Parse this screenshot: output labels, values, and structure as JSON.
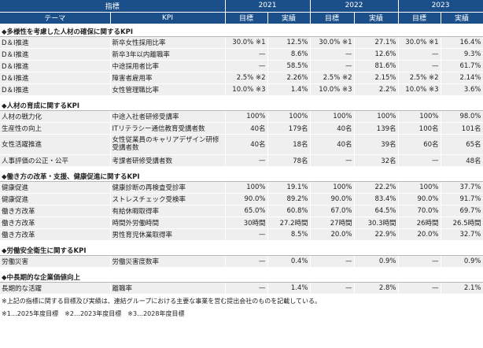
{
  "header": {
    "indicator": "指標",
    "theme": "テーマ",
    "kpi": "KPI",
    "years": [
      "2021",
      "2022",
      "2023"
    ],
    "target": "目標",
    "actual": "実績"
  },
  "sections": [
    {
      "title": "◆多様性を考慮した人材の確保に関するKPI",
      "rows": [
        {
          "theme": "D＆I推進",
          "kpi": "新卒女性採用比率",
          "v": [
            "30.0% ※1",
            "12.5%",
            "30.0% ※1",
            "27.1%",
            "30.0% ※1",
            "16.4%"
          ]
        },
        {
          "theme": "D＆I推進",
          "kpi": "新卒3年以内離職率",
          "v": [
            "—",
            "8.6%",
            "—",
            "12.6%",
            "—",
            "9.3%"
          ]
        },
        {
          "theme": "D＆I推進",
          "kpi": "中途採用者比率",
          "v": [
            "—",
            "58.5%",
            "—",
            "81.6%",
            "—",
            "61.7%"
          ]
        },
        {
          "theme": "D＆I推進",
          "kpi": "障害者雇用率",
          "v": [
            "2.5% ※2",
            "2.26%",
            "2.5% ※2",
            "2.15%",
            "2.5% ※2",
            "2.14%"
          ]
        },
        {
          "theme": "D＆I推進",
          "kpi": "女性管理職比率",
          "v": [
            "10.0% ※3",
            "1.4%",
            "10.0% ※3",
            "2.2%",
            "10.0% ※3",
            "3.6%"
          ]
        }
      ]
    },
    {
      "title": "◆人材の育成に関するKPI",
      "rows": [
        {
          "theme": "人材の戦力化",
          "kpi": "中途入社者研修受講率",
          "v": [
            "100%",
            "100%",
            "100%",
            "100%",
            "100%",
            "98.0%"
          ]
        },
        {
          "theme": "生産性の向上",
          "kpi": "ITリテラシー通信教育受講者数",
          "v": [
            "40名",
            "179名",
            "40名",
            "139名",
            "100名",
            "101名"
          ]
        },
        {
          "theme": "女性活躍推進",
          "kpi": "女性従業員のキャリアデザイン研修受講者数",
          "tall": true,
          "v": [
            "40名",
            "18名",
            "40名",
            "39名",
            "60名",
            "65名"
          ]
        },
        {
          "theme": "人事評価の公正・公平",
          "kpi": "考課者研修受講者数",
          "v": [
            "—",
            "78名",
            "—",
            "32名",
            "—",
            "48名"
          ]
        }
      ]
    },
    {
      "title": "◆働き方の改革・支援、健康促進に関するKPI",
      "rows": [
        {
          "theme": "健康促進",
          "kpi": "健康診断の再検査受診率",
          "v": [
            "100%",
            "19.1%",
            "100%",
            "22.2%",
            "100%",
            "37.7%"
          ]
        },
        {
          "theme": "健康促進",
          "kpi": "ストレスチェック受検率",
          "v": [
            "90.0%",
            "89.2%",
            "90.0%",
            "83.4%",
            "90.0%",
            "91.7%"
          ]
        },
        {
          "theme": "働き方改革",
          "kpi": "有給休暇取得率",
          "v": [
            "65.0%",
            "60.8%",
            "67.0%",
            "64.5%",
            "70.0%",
            "69.7%"
          ]
        },
        {
          "theme": "働き方改革",
          "kpi": "時間外労働時間",
          "v": [
            "30時間",
            "27.2時間",
            "27時間",
            "30.3時間",
            "26時間",
            "26.5時間"
          ]
        },
        {
          "theme": "働き方改革",
          "kpi": "男性育児休業取得率",
          "v": [
            "—",
            "8.5%",
            "20.0%",
            "22.9%",
            "20.0%",
            "32.7%"
          ]
        }
      ]
    },
    {
      "title": "◆労働安全衛生に関するKPI",
      "rows": [
        {
          "theme": "労働災害",
          "kpi": "労働災害度数率",
          "v": [
            "—",
            "0.4%",
            "—",
            "0.9%",
            "—",
            "0.9%"
          ]
        }
      ]
    },
    {
      "title": "◆中長期的な企業価値向上",
      "rows": [
        {
          "theme": "長期的な活躍",
          "kpi": "離職率",
          "v": [
            "—",
            "1.4%",
            "—",
            "2.8%",
            "—",
            "2.1%"
          ]
        }
      ]
    }
  ],
  "notes": {
    "line1": "※上記の指標に関する目標及び実績は、連結グループにおける主要な事業を営む提出会社のものを記載している。",
    "line2": "※1…2025年度目標　※2…2023年度目標　※3…2028年度目標"
  }
}
